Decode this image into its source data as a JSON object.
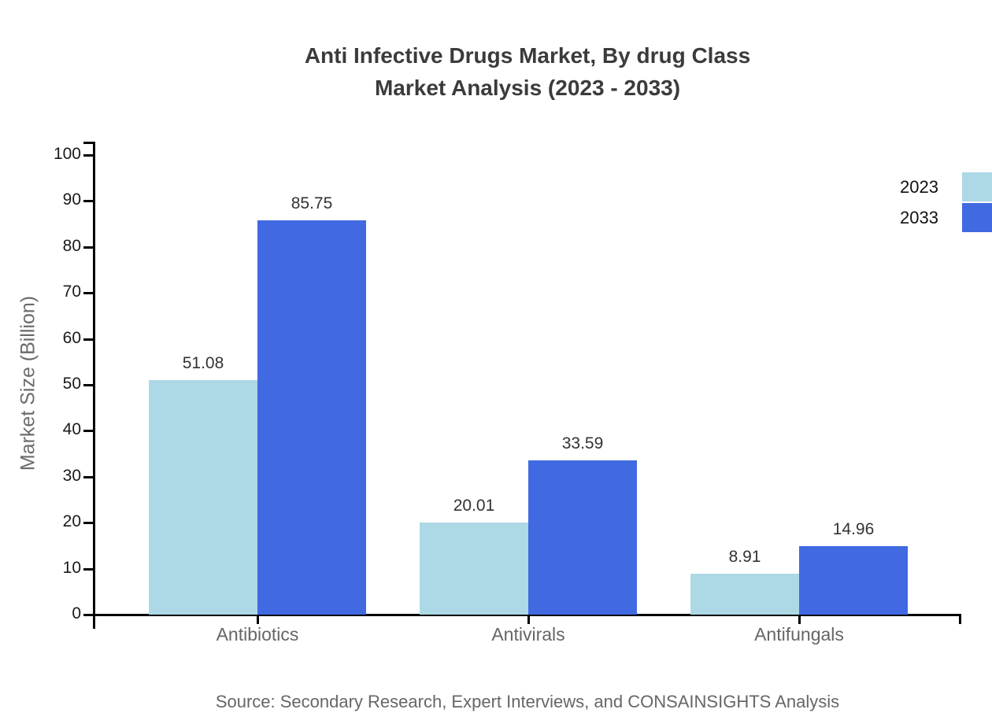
{
  "chart_data": {
    "type": "bar",
    "title": [
      "Anti Infective Drugs Market, By drug Class",
      "Market Analysis (2023 - 2033)"
    ],
    "categories": [
      "Antibiotics",
      "Antivirals",
      "Antifungals"
    ],
    "series": [
      {
        "name": "2023",
        "color": "#ADD8E6",
        "values": [
          51.08,
          20.01,
          8.91
        ],
        "labels": [
          "51.08",
          "20.01",
          "8.91"
        ]
      },
      {
        "name": "2033",
        "color": "#4169E1",
        "values": [
          85.75,
          33.59,
          14.96
        ],
        "labels": [
          "85.75",
          "33.59",
          "14.96"
        ]
      }
    ],
    "xlabel": "",
    "ylabel": "Market Size (Billion)",
    "ylim": [
      0,
      100
    ],
    "y_ticks": [
      0,
      10,
      20,
      30,
      40,
      50,
      60,
      70,
      80,
      90,
      100
    ],
    "grid": false,
    "legend_position": "top-right",
    "bar_value_labels": true,
    "source_note": "Source: Secondary Research, Expert Interviews, and CONSAINSIGHTS Analysis"
  },
  "colors": {
    "background": "#ffffff",
    "axis": "#000000",
    "title_text": "#3b3b3b",
    "tick_text": "#1a1a1a",
    "value_text": "#333333",
    "muted_text": "#666666",
    "series_2023": "#ADD8E6",
    "series_2033": "#4169E1"
  }
}
